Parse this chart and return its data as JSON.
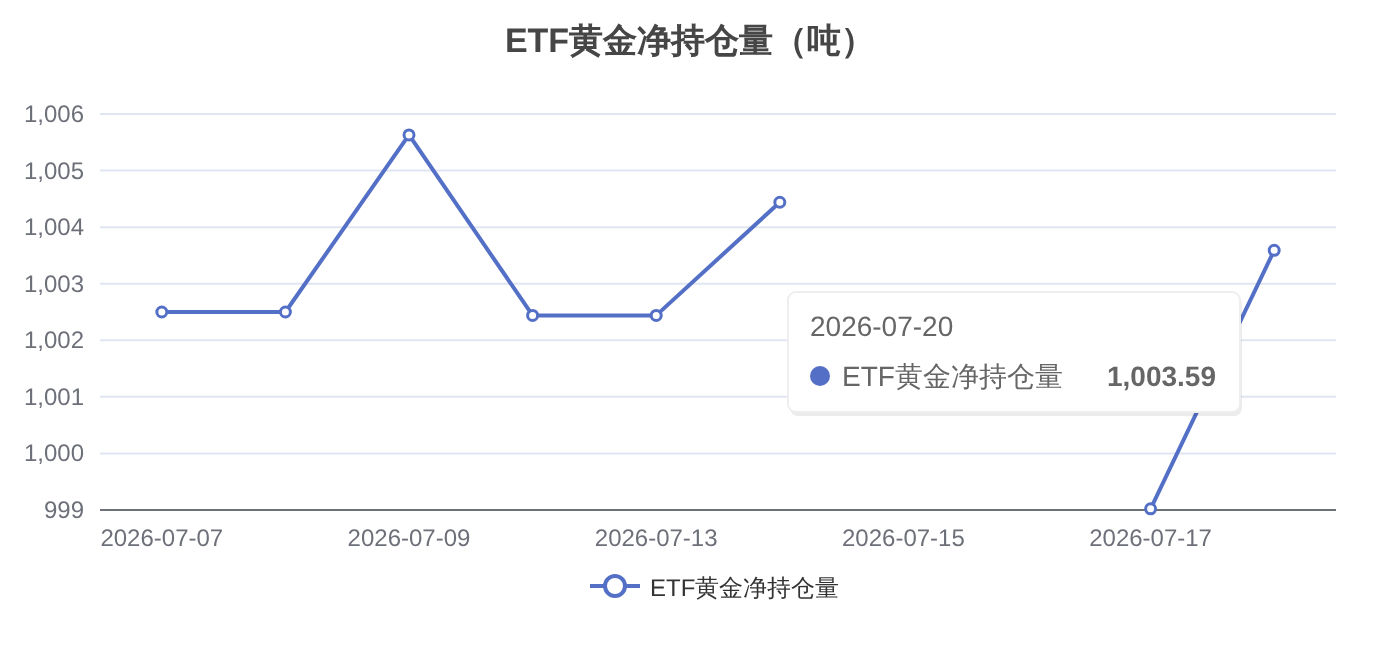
{
  "chart_data": {
    "type": "line",
    "title": "ETF黄金净持仓量（吨）",
    "categories": [
      "2026-07-07",
      null,
      "2026-07-09",
      null,
      "2026-07-13",
      null,
      "2026-07-15",
      null,
      "2026-07-17",
      null
    ],
    "series": [
      {
        "name": "ETF黄金净持仓量",
        "color": "#5470c6",
        "values": [
          1002.5,
          1002.5,
          1005.63,
          1002.44,
          1002.44,
          1004.44,
          null,
          null,
          999.02,
          1003.59
        ]
      }
    ],
    "ylim": [
      999,
      1006
    ],
    "yticks": [
      999,
      {
        "value": 1000,
        "label": "1,000"
      },
      {
        "value": 1001,
        "label": "1,001"
      },
      {
        "value": 1002,
        "label": "1,002"
      },
      {
        "value": 1003,
        "label": "1,003"
      },
      {
        "value": 1004,
        "label": "1,004"
      },
      {
        "value": 1005,
        "label": "1,005"
      },
      {
        "value": 1006,
        "label": "1,006"
      }
    ],
    "grid": "y",
    "legend": "bottom",
    "marker": "circle",
    "line_style": "solid",
    "annotations": [
      "2026-07-20",
      "1,003.59"
    ]
  }
}
